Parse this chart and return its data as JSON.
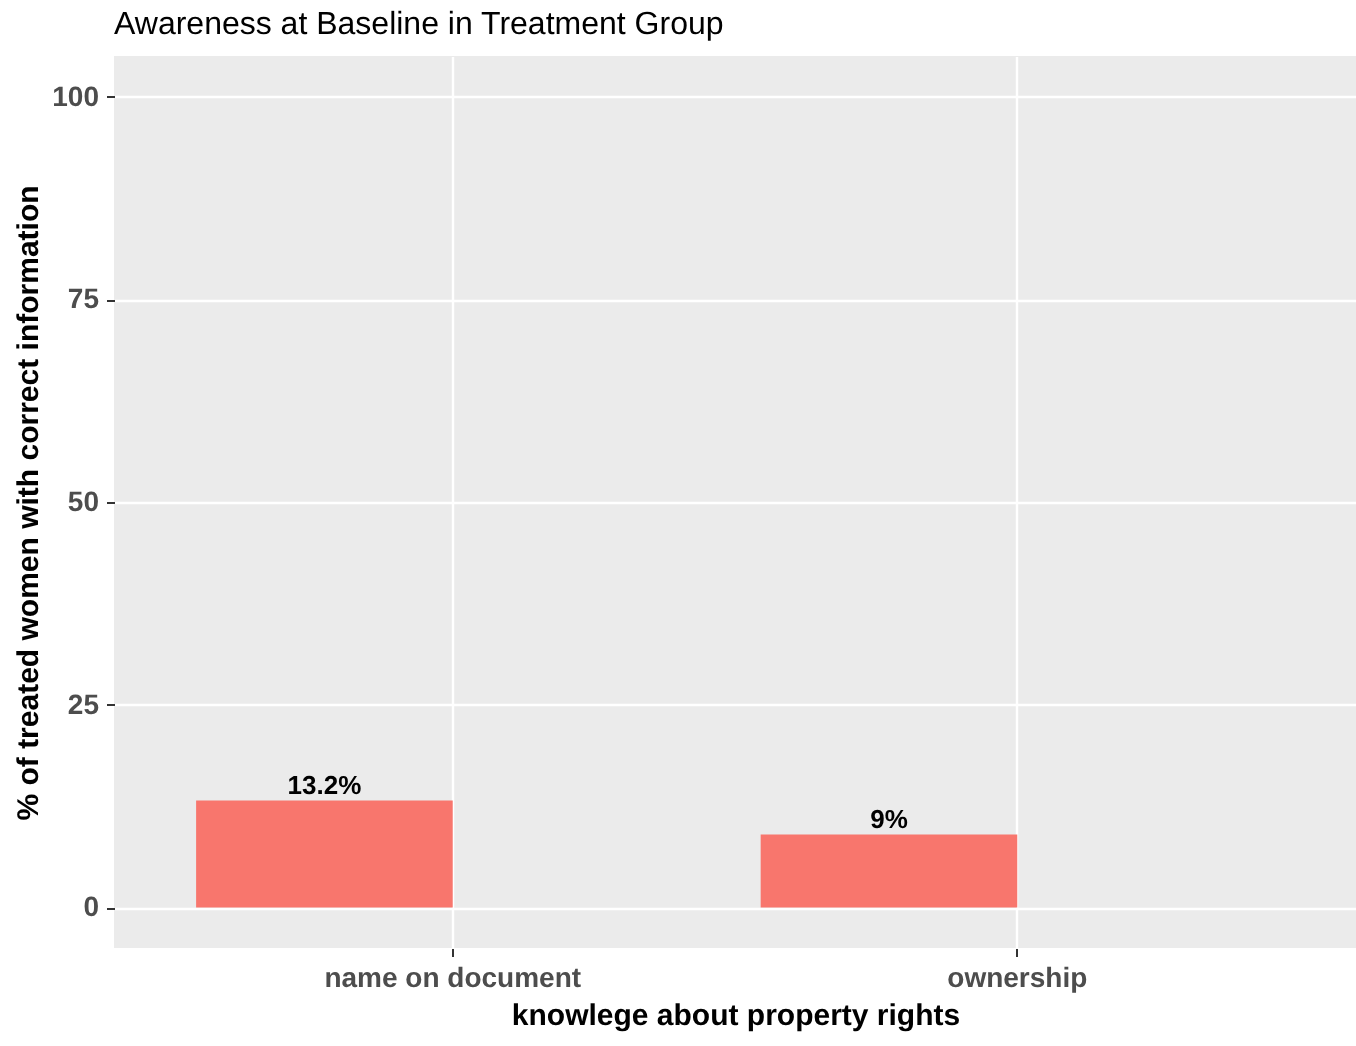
{
  "chart_data": {
    "type": "bar",
    "title": "Awareness at Baseline in Treatment Group",
    "xlabel": "knowlege about property rights",
    "ylabel": "% of treated women with correct information",
    "categories": [
      "name on document",
      "ownership"
    ],
    "values": [
      13.2,
      9
    ],
    "value_labels": [
      "13.2%",
      "9%"
    ],
    "color": "#f8766d",
    "ylim": [
      -5,
      105
    ],
    "yticks": [
      0,
      25,
      50,
      75,
      100
    ],
    "grid": true
  }
}
